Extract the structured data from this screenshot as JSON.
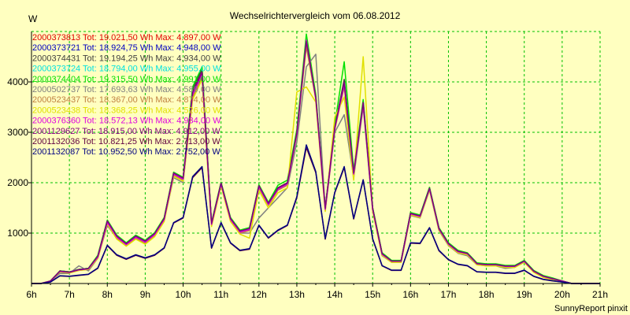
{
  "chart_data": {
    "type": "line",
    "title": "Wechselrichtervergleich vom 06.08.2012",
    "ylabel": "W",
    "ylim": [
      0,
      5000
    ],
    "yticks": [
      1000,
      2000,
      3000,
      4000
    ],
    "categories": [
      "6h",
      "7h",
      "8h",
      "9h",
      "10h",
      "11h",
      "12h",
      "13h",
      "14h",
      "15h",
      "16h",
      "17h",
      "18h",
      "19h",
      "20h",
      "21h"
    ],
    "xlim": [
      6,
      21
    ],
    "grid": true,
    "grid_color": "#00c000",
    "background_color": "#ffffc0",
    "x": [
      6.0,
      6.25,
      6.5,
      6.75,
      7.0,
      7.25,
      7.5,
      7.75,
      8.0,
      8.25,
      8.5,
      8.75,
      9.0,
      9.25,
      9.5,
      9.75,
      10.0,
      10.25,
      10.5,
      10.75,
      11.0,
      11.25,
      11.5,
      11.75,
      12.0,
      12.25,
      12.5,
      12.75,
      13.0,
      13.25,
      13.5,
      13.75,
      14.0,
      14.25,
      14.5,
      14.75,
      15.0,
      15.25,
      15.5,
      15.75,
      16.0,
      16.25,
      16.5,
      16.75,
      17.0,
      17.25,
      17.5,
      17.75,
      18.0,
      18.25,
      18.5,
      18.75,
      19.0,
      19.25,
      19.5,
      19.75,
      20.0,
      20.25,
      20.5,
      20.75,
      21.0
    ],
    "legend_position": "top-left",
    "series": [
      {
        "name": "2000373813 Tot: 19.021,50 Wh Max: 4.897,00 W",
        "color": "#e00000",
        "values": [
          0,
          0,
          50,
          250,
          230,
          280,
          300,
          550,
          1250,
          950,
          800,
          950,
          850,
          1000,
          1300,
          2200,
          2100,
          3800,
          4200,
          1200,
          2000,
          1300,
          1050,
          1100,
          1950,
          1600,
          1900,
          2000,
          3000,
          4800,
          3700,
          1500,
          3100,
          4000,
          2200,
          3600,
          1500,
          600,
          450,
          450,
          1400,
          1350,
          1900,
          1100,
          800,
          650,
          600,
          400,
          380,
          380,
          350,
          350,
          450,
          250,
          150,
          100,
          50,
          0,
          0,
          0,
          0
        ]
      },
      {
        "name": "2000373721 Tot: 18.924,75 Wh Max: 4.948,00 W",
        "color": "#0000c0",
        "values": [
          0,
          0,
          50,
          240,
          220,
          270,
          290,
          530,
          1230,
          930,
          780,
          930,
          830,
          980,
          1280,
          2180,
          2080,
          3780,
          4180,
          1180,
          1980,
          1280,
          1030,
          1080,
          1930,
          1580,
          1880,
          1980,
          2980,
          4850,
          3680,
          1480,
          3080,
          3980,
          2180,
          3580,
          1480,
          580,
          440,
          440,
          1380,
          1330,
          1880,
          1080,
          780,
          630,
          590,
          390,
          370,
          370,
          340,
          340,
          440,
          240,
          140,
          90,
          50,
          0,
          0,
          0,
          0
        ]
      },
      {
        "name": "2000374431 Tot: 19.194,25 Wh Max: 4.934,00 W",
        "color": "#404040",
        "values": [
          0,
          0,
          50,
          250,
          230,
          280,
          300,
          550,
          1250,
          950,
          800,
          950,
          850,
          1000,
          1300,
          2200,
          2100,
          3850,
          4250,
          1200,
          2000,
          1300,
          1050,
          1100,
          1950,
          1600,
          1900,
          2000,
          3000,
          4830,
          3700,
          1500,
          3100,
          4050,
          2200,
          3600,
          1500,
          600,
          450,
          450,
          1400,
          1350,
          1900,
          1100,
          800,
          650,
          600,
          400,
          380,
          380,
          350,
          350,
          450,
          250,
          150,
          100,
          50,
          0,
          0,
          0,
          0
        ]
      },
      {
        "name": "2000373724 Tot: 18.794,00 Wh Max: 4.955,00 W",
        "color": "#00e0e0",
        "values": [
          0,
          0,
          50,
          240,
          220,
          270,
          290,
          530,
          1220,
          930,
          780,
          930,
          830,
          980,
          1280,
          2180,
          2080,
          3780,
          4180,
          1180,
          1980,
          1280,
          1030,
          1080,
          1930,
          1580,
          1880,
          1980,
          2980,
          4880,
          3680,
          1480,
          3080,
          3980,
          2180,
          3580,
          1480,
          580,
          440,
          440,
          1380,
          1330,
          1880,
          1080,
          780,
          630,
          590,
          390,
          370,
          370,
          340,
          340,
          440,
          240,
          140,
          90,
          50,
          0,
          0,
          0,
          0
        ]
      },
      {
        "name": "2000374404 Tot: 19.315,50 Wh Max: 4.991,00 W",
        "color": "#00e000",
        "values": [
          0,
          0,
          50,
          250,
          230,
          280,
          300,
          560,
          1260,
          960,
          810,
          960,
          860,
          1010,
          1310,
          2210,
          2110,
          3900,
          4300,
          1210,
          2010,
          1310,
          1060,
          1110,
          1960,
          1610,
          1950,
          2050,
          3050,
          4950,
          3750,
          1510,
          3150,
          4400,
          2250,
          3650,
          1510,
          610,
          460,
          460,
          1410,
          1360,
          1910,
          1110,
          810,
          660,
          610,
          410,
          390,
          390,
          360,
          360,
          460,
          260,
          160,
          110,
          50,
          0,
          0,
          0,
          0
        ]
      },
      {
        "name": "2000502737 Tot: 17.693,63 Wh Max: 4.589,00 W",
        "color": "#808080",
        "values": [
          0,
          0,
          50,
          200,
          200,
          350,
          250,
          500,
          1150,
          900,
          750,
          900,
          800,
          950,
          1250,
          2100,
          2000,
          3700,
          4100,
          1150,
          1950,
          1250,
          1000,
          1000,
          1300,
          1500,
          1700,
          1900,
          2800,
          4300,
          4550,
          1450,
          3000,
          3350,
          2100,
          3500,
          1450,
          550,
          420,
          420,
          1350,
          1300,
          1850,
          1050,
          750,
          600,
          550,
          370,
          350,
          350,
          300,
          320,
          420,
          230,
          130,
          80,
          40,
          0,
          0,
          0,
          0
        ]
      },
      {
        "name": "2000523437 Tot: 18.367,00 Wh Max: 4.874,00 W",
        "color": "#c08040",
        "values": [
          0,
          0,
          50,
          230,
          210,
          260,
          280,
          510,
          1200,
          900,
          760,
          900,
          800,
          950,
          1250,
          2150,
          2050,
          3700,
          4100,
          1150,
          1950,
          1250,
          1000,
          1050,
          1900,
          1550,
          1850,
          1950,
          2950,
          4700,
          3650,
          1450,
          3050,
          3900,
          2150,
          3550,
          1450,
          570,
          430,
          430,
          1370,
          1320,
          1870,
          1070,
          770,
          620,
          580,
          380,
          360,
          360,
          330,
          330,
          430,
          230,
          130,
          80,
          40,
          0,
          0,
          0,
          0
        ]
      },
      {
        "name": "2000523438 Tot: 18.368,25 Wh Max: 4.526,00 W",
        "color": "#e0e000",
        "values": [
          0,
          0,
          50,
          230,
          210,
          260,
          280,
          500,
          1180,
          880,
          740,
          880,
          780,
          930,
          1230,
          2130,
          2030,
          3650,
          4050,
          1130,
          1930,
          1230,
          980,
          900,
          1850,
          1500,
          1800,
          1900,
          3800,
          3900,
          3600,
          1430,
          3300,
          3700,
          2050,
          4500,
          1430,
          560,
          420,
          420,
          1360,
          1310,
          1860,
          1060,
          760,
          610,
          570,
          370,
          350,
          350,
          320,
          320,
          420,
          220,
          120,
          70,
          40,
          0,
          0,
          0,
          0
        ]
      },
      {
        "name": "2000376360 Tot: 18.572,13 Wh Max: 4.934,00 W",
        "color": "#e000e0",
        "values": [
          0,
          0,
          50,
          240,
          220,
          270,
          290,
          520,
          1210,
          920,
          770,
          920,
          820,
          970,
          1270,
          2170,
          2070,
          3750,
          4150,
          1170,
          1970,
          1270,
          1020,
          1070,
          1920,
          1570,
          1870,
          1970,
          2970,
          4830,
          3670,
          1470,
          3070,
          3950,
          2170,
          3570,
          1470,
          580,
          440,
          440,
          1380,
          1330,
          1880,
          1080,
          780,
          630,
          590,
          390,
          370,
          370,
          340,
          340,
          440,
          240,
          140,
          90,
          50,
          0,
          0,
          0,
          0
        ]
      },
      {
        "name": "2001129627 Tot: 18.915,00 Wh Max: 4.912,00 W",
        "color": "#800080",
        "values": [
          0,
          0,
          50,
          245,
          225,
          275,
          295,
          540,
          1240,
          940,
          790,
          940,
          840,
          990,
          1290,
          2190,
          2090,
          3790,
          4190,
          1190,
          1990,
          1290,
          1040,
          1090,
          1940,
          1590,
          1890,
          1990,
          2990,
          4810,
          3690,
          1490,
          3090,
          3990,
          2190,
          3590,
          1490,
          590,
          445,
          445,
          1390,
          1340,
          1890,
          1090,
          790,
          640,
          595,
          395,
          375,
          375,
          345,
          345,
          445,
          245,
          145,
          95,
          50,
          0,
          0,
          0,
          0
        ]
      },
      {
        "name": "2001132036 Tot: 10.821,25 Wh Max: 2.713,00 W",
        "color": "#600040",
        "values": [
          0,
          0,
          30,
          150,
          140,
          160,
          180,
          300,
          750,
          560,
          480,
          560,
          500,
          560,
          700,
          1200,
          1300,
          2100,
          2300,
          700,
          1200,
          800,
          650,
          680,
          1150,
          900,
          1050,
          1150,
          1700,
          2700,
          2200,
          880,
          1800,
          2300,
          1280,
          2050,
          880,
          350,
          260,
          260,
          800,
          790,
          1100,
          650,
          470,
          380,
          350,
          230,
          220,
          220,
          200,
          200,
          260,
          140,
          80,
          50,
          30,
          0,
          0,
          0,
          0
        ]
      },
      {
        "name": "2001132087 Tot: 10.952,50 Wh Max: 2.752,00 W",
        "color": "#000080",
        "values": [
          0,
          0,
          30,
          155,
          145,
          165,
          185,
          310,
          760,
          570,
          490,
          570,
          510,
          570,
          710,
          1210,
          1310,
          2120,
          2320,
          710,
          1210,
          810,
          660,
          690,
          1160,
          910,
          1060,
          1160,
          1720,
          2750,
          2220,
          890,
          1810,
          2320,
          1290,
          2060,
          890,
          355,
          265,
          265,
          810,
          800,
          1110,
          660,
          475,
          385,
          355,
          235,
          225,
          225,
          205,
          205,
          265,
          145,
          85,
          55,
          30,
          0,
          0,
          0,
          0
        ]
      }
    ]
  },
  "footer": "SunnyReport pinxit"
}
